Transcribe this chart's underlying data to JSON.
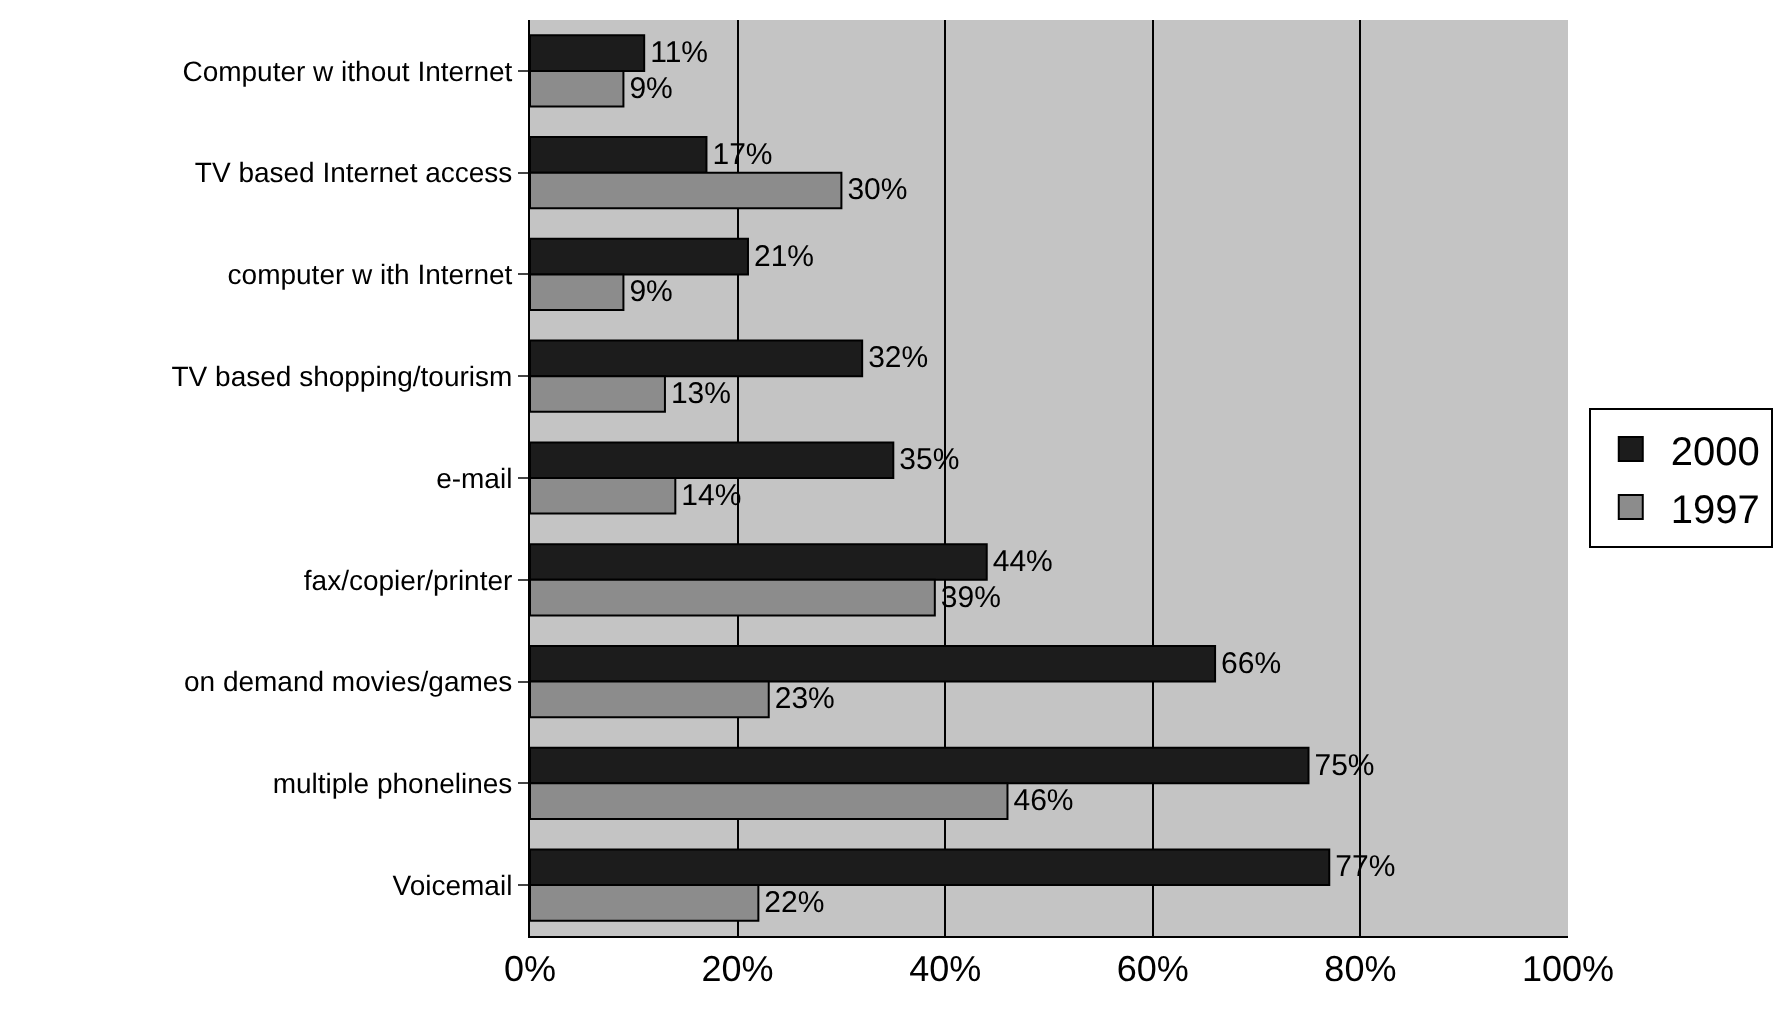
{
  "chart_data": {
    "type": "bar",
    "orientation": "horizontal",
    "categories": [
      "Computer w ithout Internet",
      "TV based Internet access",
      "computer w ith Internet",
      "TV based shopping/tourism",
      "e-mail",
      "fax/copier/printer",
      "on demand movies/games",
      "multiple phonelines",
      "Voicemail"
    ],
    "series": [
      {
        "name": "2000",
        "color": "#1c1c1c",
        "values": [
          11,
          17,
          21,
          32,
          35,
          44,
          66,
          75,
          77
        ],
        "value_labels": [
          "11%",
          "17%",
          "21%",
          "32%",
          "35%",
          "44%",
          "66%",
          "75%",
          "77%"
        ]
      },
      {
        "name": "1997",
        "color": "#8c8c8c",
        "values": [
          9,
          30,
          9,
          13,
          14,
          39,
          23,
          46,
          22
        ],
        "value_labels": [
          "9%",
          "30%",
          "9%",
          "13%",
          "14%",
          "39%",
          "23%",
          "46%",
          "22%"
        ]
      }
    ],
    "xlim": [
      0,
      100
    ],
    "xticks": [
      {
        "value": 0,
        "label": "0%"
      },
      {
        "value": 20,
        "label": "20%"
      },
      {
        "value": 40,
        "label": "40%"
      },
      {
        "value": 60,
        "label": "60%"
      },
      {
        "value": 80,
        "label": "80%"
      },
      {
        "value": 100,
        "label": "100%"
      }
    ],
    "grid": "x",
    "legend": "right"
  }
}
